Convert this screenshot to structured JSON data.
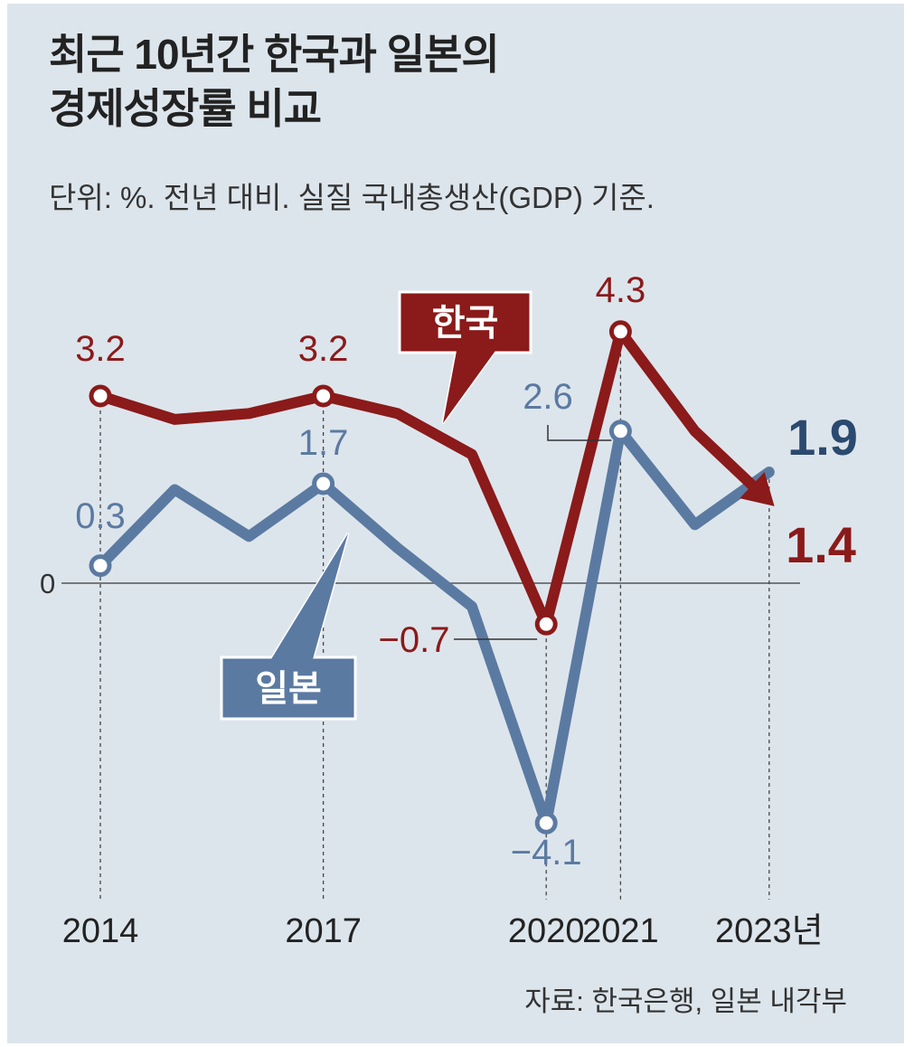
{
  "title_line1": "최근 10년간 한국과 일본의",
  "title_line2": "경제성장률 비교",
  "subtitle": "단위: %. 전년 대비. 실질 국내총생산(GDP) 기준.",
  "source": "자료: 한국은행, 일본 내각부",
  "colors": {
    "korea": "#8b1a1a",
    "japan": "#5b7aa2",
    "background": "#dde5ec",
    "text": "#222222"
  },
  "chart_data": {
    "type": "line",
    "title": "최근 10년간 한국과 일본의 경제성장률 비교",
    "ylabel": "%",
    "ylim": [
      -4.1,
      4.3
    ],
    "x": [
      2014,
      2015,
      2016,
      2017,
      2018,
      2019,
      2020,
      2021,
      2022,
      2023
    ],
    "x_tick_labels": [
      "2014",
      "2017",
      "2020",
      "2021",
      "2023년"
    ],
    "x_tick_values": [
      2014,
      2017,
      2020,
      2021,
      2023
    ],
    "zero_label": "0",
    "series": [
      {
        "name": "한국",
        "values": [
          3.2,
          2.8,
          2.9,
          3.2,
          2.9,
          2.2,
          -0.7,
          4.3,
          2.6,
          1.4
        ],
        "labels": [
          {
            "x": 2014,
            "y": 3.2,
            "text": "3.2"
          },
          {
            "x": 2017,
            "y": 3.2,
            "text": "3.2"
          },
          {
            "x": 2020,
            "y": -0.7,
            "text": "−0.7"
          },
          {
            "x": 2021,
            "y": 4.3,
            "text": "4.3"
          },
          {
            "x": 2023,
            "y": 1.4,
            "text": "1.4"
          }
        ]
      },
      {
        "name": "일본",
        "values": [
          0.3,
          1.6,
          0.8,
          1.7,
          0.6,
          -0.4,
          -4.1,
          2.6,
          1.0,
          1.9
        ],
        "labels": [
          {
            "x": 2014,
            "y": 0.3,
            "text": "0.3"
          },
          {
            "x": 2017,
            "y": 1.7,
            "text": "1.7"
          },
          {
            "x": 2020,
            "y": -4.1,
            "text": "−4.1"
          },
          {
            "x": 2021,
            "y": 2.6,
            "text": "2.6"
          },
          {
            "x": 2023,
            "y": 1.9,
            "text": "1.9"
          }
        ]
      }
    ]
  }
}
